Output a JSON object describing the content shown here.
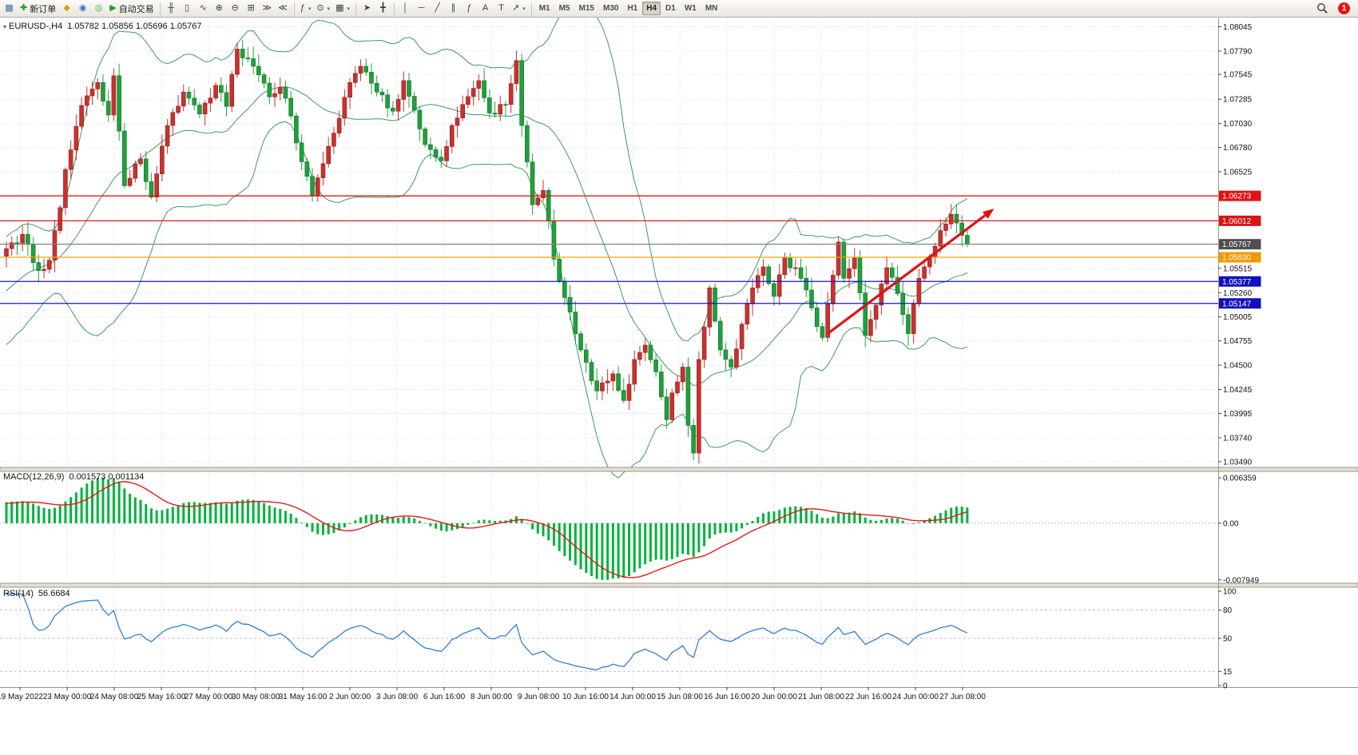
{
  "app": {
    "notification_count": "1"
  },
  "toolbar": {
    "groups": [
      {
        "items": [
          {
            "name": "new-chart",
            "glyph": "▩",
            "color": "#4a6fa5"
          },
          {
            "name": "new-order",
            "glyph": "✚",
            "color": "#18a018",
            "label": "新订单"
          },
          {
            "name": "chart-profiles",
            "glyph": "◆",
            "color": "#d9a400"
          },
          {
            "name": "market-watch",
            "glyph": "◉",
            "color": "#3a6ebf"
          },
          {
            "name": "navigator",
            "glyph": "◎",
            "color": "#2f9e44"
          },
          {
            "name": "autotrading",
            "glyph": "▶",
            "color": "#18a018",
            "label": "自动交易"
          }
        ]
      },
      {
        "items": [
          {
            "name": "bar-chart-mode",
            "glyph": "╫"
          },
          {
            "name": "candlestick-mode",
            "glyph": "▯"
          },
          {
            "name": "line-chart-mode",
            "glyph": "∿"
          },
          {
            "name": "zoom-in",
            "glyph": "⊕"
          },
          {
            "name": "zoom-out",
            "glyph": "⊖"
          },
          {
            "name": "tile-windows",
            "glyph": "⊞"
          },
          {
            "name": "auto-scroll",
            "glyph": "≫"
          },
          {
            "name": "chart-shift",
            "glyph": "≪"
          }
        ]
      },
      {
        "items": [
          {
            "name": "indicators-menu",
            "glyph": "ƒ",
            "dropdown": true
          },
          {
            "name": "periods-menu",
            "glyph": "⊙",
            "dropdown": true
          },
          {
            "name": "templates-menu",
            "glyph": "▦",
            "dropdown": true
          }
        ]
      },
      {
        "items": [
          {
            "name": "cursor-tool",
            "glyph": "➤"
          },
          {
            "name": "crosshair-tool",
            "glyph": "╋"
          }
        ]
      },
      {
        "items": [
          {
            "name": "vertical-line-tool",
            "glyph": "│"
          },
          {
            "name": "horizontal-line-tool",
            "glyph": "─"
          },
          {
            "name": "trendline-tool",
            "glyph": "╱"
          },
          {
            "name": "channel-tool",
            "glyph": "∥"
          },
          {
            "name": "fibonacci-tool",
            "glyph": "ƒ"
          },
          {
            "name": "text-tool",
            "glyph": "A"
          },
          {
            "name": "label-tool",
            "glyph": "T"
          },
          {
            "name": "arrows-tool",
            "glyph": "↗",
            "dropdown": true
          }
        ]
      }
    ],
    "timeframes": {
      "options": [
        "M1",
        "M5",
        "M15",
        "M30",
        "H1",
        "H4",
        "D1",
        "W1",
        "MN"
      ],
      "active": "H4"
    }
  },
  "chart": {
    "header": {
      "marker_glyph": "▾",
      "symbol": "EURUSD-,H4",
      "ohlc_text": "1.05782 1.05856 1.05696 1.05767"
    }
  },
  "colors": {
    "bull": "#c8312f",
    "bull_dark": "#8f1f1e",
    "bear": "#1fa03c",
    "bear_dark": "#137028",
    "bollinger": "#3c9a64",
    "grid": "#dadada",
    "frame": "#9b978d",
    "macd_hist": "#00b33c",
    "macd_signal": "#e31b1b",
    "rsi": "#2f7fd6",
    "rsi_level": "#b9b9d9",
    "arrow": "#e01212"
  },
  "chart_data": {
    "type": "candlestick",
    "symbol": "EURUSD-",
    "timeframe": "H4",
    "current": {
      "open": 1.05782,
      "high": 1.05856,
      "low": 1.05696,
      "close": 1.05767
    },
    "y_axis": {
      "p_top": 1.0814,
      "p_bottom": 1.0343,
      "ticks": [
        1.08045,
        1.0779,
        1.07545,
        1.07285,
        1.0703,
        1.0678,
        1.06525,
        1.05515,
        1.0526,
        1.05005,
        1.04755,
        1.045,
        1.04245,
        1.03995,
        1.0374,
        1.0349
      ]
    },
    "levels": [
      {
        "price": 1.06273,
        "label": "1.06273",
        "line_color": "#e51919",
        "box_color": "#dc1414",
        "kind": "resistance"
      },
      {
        "price": 1.06012,
        "label": "1.06012",
        "line_color": "#e51919",
        "box_color": "#dc1414",
        "kind": "resistance"
      },
      {
        "price": 1.05767,
        "label": "1.05767",
        "line_color": "#808080",
        "box_color": "#4f4f4f",
        "kind": "current-price"
      },
      {
        "price": 1.0563,
        "label": "1.05630",
        "line_color": "#f5a500",
        "box_color": "#ef9b00",
        "kind": "pivot"
      },
      {
        "price": 1.05377,
        "label": "1.05377",
        "line_color": "#1717cf",
        "box_color": "#1111bb",
        "kind": "support"
      },
      {
        "price": 1.05147,
        "label": "1.05147",
        "line_color": "#1717cf",
        "box_color": "#1111bb",
        "kind": "support"
      }
    ],
    "x_axis": {
      "labels": [
        "19 May 2022",
        "23 May 00:00",
        "24 May 08:00",
        "25 May 16:00",
        "27 May 00:00",
        "30 May 08:00",
        "31 May 16:00",
        "2 Jun 00:00",
        "3 Jun 08:00",
        "6 Jun 16:00",
        "8 Jun 00:00",
        "9 Jun 08:00",
        "10 Jun 16:00",
        "14 Jun 00:00",
        "15 Jun 08:00",
        "16 Jun 16:00",
        "20 Jun 00:00",
        "21 Jun 08:00",
        "22 Jun 16:00",
        "24 Jun 00:00",
        "27 Jun 08:00"
      ]
    },
    "candles_total": 210,
    "candles_visible_from": 30,
    "price_path_waypoints": [
      [
        0,
        1.0445
      ],
      [
        8,
        1.0465
      ],
      [
        16,
        1.0505
      ],
      [
        23,
        1.0545
      ],
      [
        30,
        1.0572
      ],
      [
        33,
        1.0587
      ],
      [
        36,
        1.0549
      ],
      [
        38,
        1.056
      ],
      [
        40,
        1.0615
      ],
      [
        41,
        1.0655
      ],
      [
        44,
        1.0722
      ],
      [
        47,
        1.0746
      ],
      [
        49,
        1.0712
      ],
      [
        50,
        1.0753
      ],
      [
        52,
        1.0638
      ],
      [
        55,
        1.0666
      ],
      [
        57,
        1.0626
      ],
      [
        60,
        1.0701
      ],
      [
        63,
        1.0736
      ],
      [
        66,
        1.0713
      ],
      [
        69,
        1.0743
      ],
      [
        71,
        1.0721
      ],
      [
        73,
        1.0781
      ],
      [
        76,
        1.0763
      ],
      [
        79,
        1.0731
      ],
      [
        81,
        1.0741
      ],
      [
        83,
        1.0711
      ],
      [
        85,
        1.0663
      ],
      [
        87,
        1.0628
      ],
      [
        89,
        1.0661
      ],
      [
        91,
        1.0693
      ],
      [
        94,
        1.0746
      ],
      [
        96,
        1.0763
      ],
      [
        99,
        1.0736
      ],
      [
        102,
        1.0716
      ],
      [
        104,
        1.0748
      ],
      [
        106,
        1.0717
      ],
      [
        108,
        1.0681
      ],
      [
        111,
        1.0664
      ],
      [
        113,
        1.0701
      ],
      [
        115,
        1.0723
      ],
      [
        118,
        1.0748
      ],
      [
        120,
        1.0714
      ],
      [
        123,
        1.0723
      ],
      [
        125,
        1.0769
      ],
      [
        126,
        1.0701
      ],
      [
        128,
        1.0618
      ],
      [
        130,
        1.0633
      ],
      [
        132,
        1.0561
      ],
      [
        134,
        1.0521
      ],
      [
        136,
        1.0483
      ],
      [
        138,
        1.0453
      ],
      [
        140,
        1.0423
      ],
      [
        143,
        1.0441
      ],
      [
        145,
        1.0413
      ],
      [
        147,
        1.0456
      ],
      [
        149,
        1.0471
      ],
      [
        151,
        1.0443
      ],
      [
        153,
        1.0393
      ],
      [
        154,
        1.0421
      ],
      [
        156,
        1.0448
      ],
      [
        157,
        1.0387
      ],
      [
        158,
        1.0358
      ],
      [
        159,
        1.0456
      ],
      [
        161,
        1.0531
      ],
      [
        163,
        1.0466
      ],
      [
        165,
        1.0448
      ],
      [
        167,
        1.0493
      ],
      [
        169,
        1.0531
      ],
      [
        171,
        1.0553
      ],
      [
        173,
        1.0522
      ],
      [
        175,
        1.0563
      ],
      [
        178,
        1.0541
      ],
      [
        180,
        1.051
      ],
      [
        182,
        1.0479
      ],
      [
        185,
        1.0579
      ],
      [
        186,
        1.0541
      ],
      [
        188,
        1.0563
      ],
      [
        190,
        1.0481
      ],
      [
        192,
        1.0513
      ],
      [
        194,
        1.0552
      ],
      [
        196,
        1.0525
      ],
      [
        198,
        1.0483
      ],
      [
        200,
        1.0541
      ],
      [
        202,
        1.0563
      ],
      [
        204,
        1.0591
      ],
      [
        206,
        1.0608
      ],
      [
        208,
        1.0586
      ],
      [
        209,
        1.05767
      ]
    ],
    "indicators": {
      "bollinger": {
        "period": 20,
        "deviation": 2
      },
      "macd": {
        "label": "MACD(12,26,9)",
        "values_text": "0.001573 0.001134",
        "fast": 12,
        "slow": 26,
        "signal": 9,
        "axis_ticks": [
          {
            "label": "0.006359",
            "value": 0.006359
          },
          {
            "label": "0.00",
            "value": 0
          },
          {
            "label": "-0.007949",
            "value": -0.007949
          }
        ]
      },
      "rsi": {
        "label": "RSI(14)",
        "value_text": "56.6684",
        "period": 14,
        "levels": [
          80,
          50,
          15
        ],
        "axis_ticks": [
          {
            "label": "100",
            "value": 100
          },
          {
            "label": "80",
            "value": 80
          },
          {
            "label": "50",
            "value": 50
          },
          {
            "label": "15",
            "value": 15
          },
          {
            "label": "0",
            "value": 0
          }
        ]
      }
    },
    "annotations": {
      "trend_arrow": {
        "from_index": 153,
        "from_price": 1.0483,
        "to_index": 184,
        "to_price": 1.0614
      }
    }
  }
}
